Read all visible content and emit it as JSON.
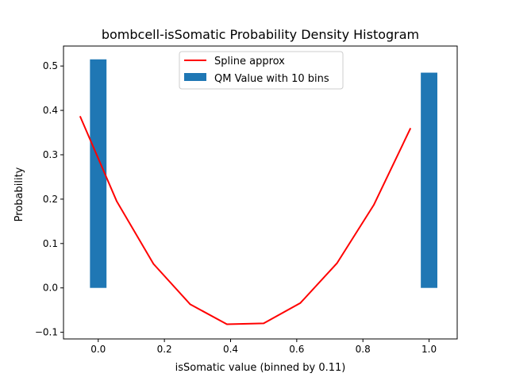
{
  "chart_data": {
    "type": "bar",
    "title": "bombcell-isSomatic Probability Density Histogram",
    "xlabel": "isSomatic value (binned by 0.11)",
    "ylabel": "Probability",
    "xlim": [
      -0.105,
      1.085
    ],
    "ylim": [
      -0.115,
      0.545
    ],
    "xticks": [
      0.0,
      0.2,
      0.4,
      0.6,
      0.8,
      1.0
    ],
    "xtick_labels": [
      "0.0",
      "0.2",
      "0.4",
      "0.6",
      "0.8",
      "1.0"
    ],
    "yticks": [
      -0.1,
      0.0,
      0.1,
      0.2,
      0.3,
      0.4,
      0.5
    ],
    "ytick_labels": [
      "−0.1",
      "0.0",
      "0.1",
      "0.2",
      "0.3",
      "0.4",
      "0.5"
    ],
    "grid": false,
    "legend_position": "top-center",
    "legend": [
      {
        "label": "Spline approx",
        "kind": "line",
        "color": "#ff0000"
      },
      {
        "label": "QM Value with 10 bins",
        "kind": "patch",
        "color": "#1f77b4"
      }
    ],
    "bars": {
      "name": "QM Value with 10 bins",
      "color": "#1f77b4",
      "width": 0.05,
      "x": [
        0.0,
        1.0
      ],
      "values": [
        0.515,
        0.485
      ]
    },
    "line": {
      "name": "Spline approx",
      "color": "#ff0000",
      "x": [
        -0.055,
        0.056,
        0.167,
        0.278,
        0.389,
        0.5,
        0.611,
        0.722,
        0.833,
        0.944
      ],
      "y": [
        0.387,
        0.195,
        0.054,
        -0.037,
        -0.082,
        -0.08,
        -0.034,
        0.056,
        0.187,
        0.36
      ]
    }
  }
}
